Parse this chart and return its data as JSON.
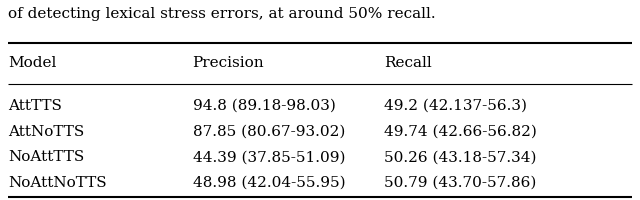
{
  "caption": "of detecting lexical stress errors, at around 50% recall.",
  "columns": [
    "Model",
    "Precision",
    "Recall"
  ],
  "rows": [
    [
      "AttTTS",
      "94.8 (89.18-98.03)",
      "49.2 (42.137-56.3)"
    ],
    [
      "AttNoTTS",
      "87.85 (80.67-93.02)",
      "49.74 (42.66-56.82)"
    ],
    [
      "NoAttTTS",
      "44.39 (37.85-51.09)",
      "50.26 (43.18-57.34)"
    ],
    [
      "NoAttNoTTS",
      "48.98 (42.04-55.95)",
      "50.79 (43.70-57.86)"
    ]
  ],
  "background_color": "#ffffff",
  "font_size": 11,
  "caption_font_size": 11
}
